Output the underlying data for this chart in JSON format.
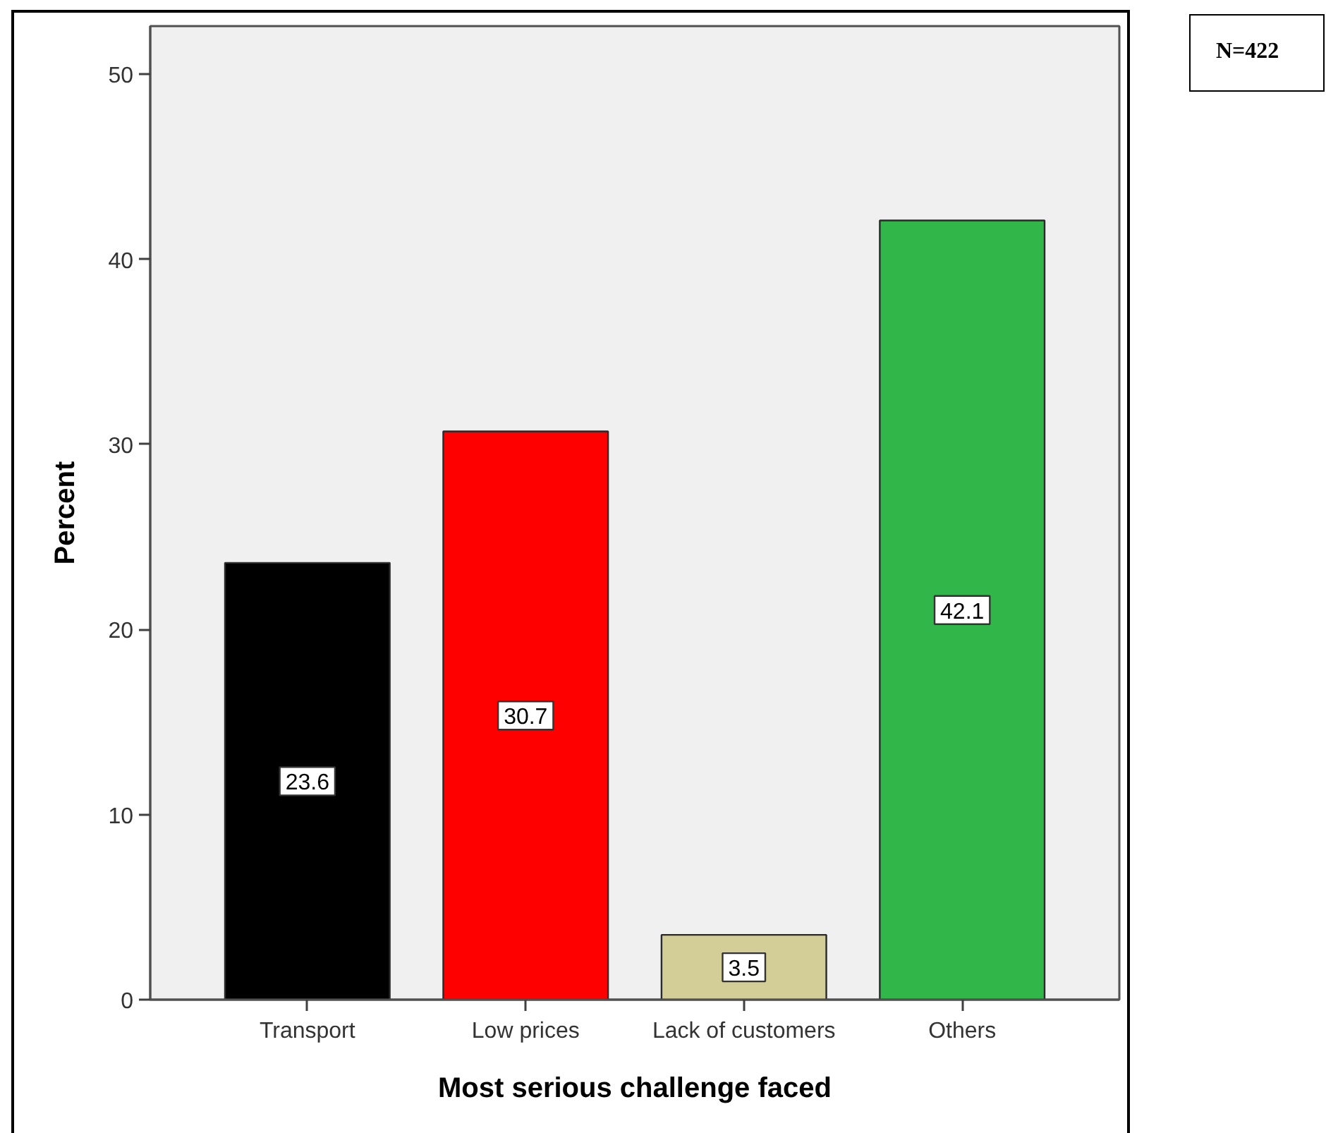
{
  "chart_data": {
    "type": "bar",
    "xlabel": "Most serious challenge faced",
    "ylabel": "Percent",
    "categories": [
      "Transport",
      "Low prices",
      "Lack of customers",
      "Others"
    ],
    "values": [
      23.6,
      30.7,
      3.5,
      42.1
    ],
    "colors": [
      "#000000",
      "#ff0000",
      "#d3cd97",
      "#31b64a"
    ],
    "ylim": [
      0,
      52.6
    ],
    "yticks": [
      0,
      10,
      20,
      30,
      40,
      50
    ],
    "data_labels": true,
    "grid": false,
    "annotations": [
      "N=422"
    ]
  }
}
